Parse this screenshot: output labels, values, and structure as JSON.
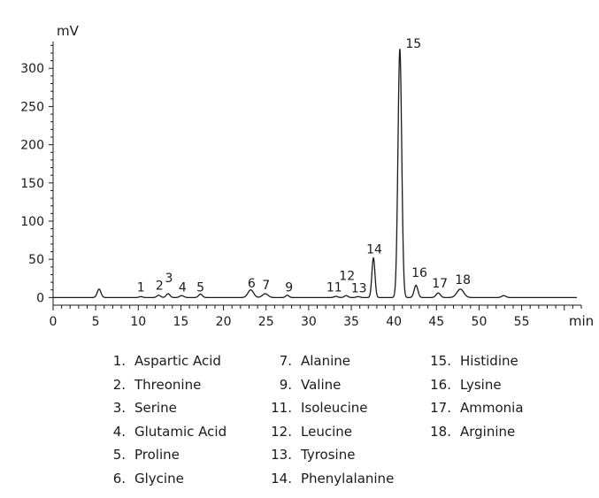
{
  "chart_data": {
    "type": "line",
    "title": "",
    "ylabel": "mV",
    "xlabel": "min",
    "xlim": [
      0,
      62
    ],
    "ylim": [
      -10,
      335
    ],
    "xticks": [
      0,
      5,
      10,
      15,
      20,
      25,
      30,
      35,
      40,
      45,
      50,
      55
    ],
    "yticks": [
      0,
      50,
      100,
      150,
      200,
      250,
      300
    ],
    "grid": false,
    "peaks": [
      {
        "t": 5.4,
        "h": 11,
        "w": 0.22
      },
      {
        "t": 10.3,
        "h": 1.2,
        "w": 0.2
      },
      {
        "t": 12.4,
        "h": 3,
        "w": 0.22
      },
      {
        "t": 13.5,
        "h": 5,
        "w": 0.22
      },
      {
        "t": 15.1,
        "h": 2.5,
        "w": 0.25
      },
      {
        "t": 17.3,
        "h": 4.5,
        "w": 0.22
      },
      {
        "t": 23.2,
        "h": 10,
        "w": 0.33
      },
      {
        "t": 24.9,
        "h": 5,
        "w": 0.33
      },
      {
        "t": 27.5,
        "h": 3,
        "w": 0.2
      },
      {
        "t": 33.2,
        "h": 1.5,
        "w": 0.22
      },
      {
        "t": 34.4,
        "h": 2.5,
        "w": 0.22
      },
      {
        "t": 35.8,
        "h": 1.2,
        "w": 0.22
      },
      {
        "t": 37.6,
        "h": 52,
        "w": 0.18
      },
      {
        "t": 40.7,
        "h": 325,
        "w": 0.22
      },
      {
        "t": 42.6,
        "h": 16,
        "w": 0.22
      },
      {
        "t": 45.2,
        "h": 6,
        "w": 0.25
      },
      {
        "t": 47.8,
        "h": 11,
        "w": 0.4
      },
      {
        "t": 52.9,
        "h": 2.5,
        "w": 0.25
      }
    ],
    "peak_labels": [
      {
        "text": "1",
        "x": 10.3,
        "y": 8
      },
      {
        "text": "2",
        "x": 12.5,
        "y": 10
      },
      {
        "text": "3",
        "x": 13.6,
        "y": 20
      },
      {
        "text": "4",
        "x": 15.2,
        "y": 8
      },
      {
        "text": "5",
        "x": 17.3,
        "y": 8
      },
      {
        "text": "6",
        "x": 23.3,
        "y": 13
      },
      {
        "text": "7",
        "x": 25.0,
        "y": 11
      },
      {
        "text": "9",
        "x": 27.7,
        "y": 8
      },
      {
        "text": "11",
        "x": 33.0,
        "y": 8
      },
      {
        "text": "12",
        "x": 34.5,
        "y": 23
      },
      {
        "text": "13",
        "x": 35.9,
        "y": 7
      },
      {
        "text": "14",
        "x": 37.7,
        "y": 58
      },
      {
        "text": "15",
        "x": 42.3,
        "y": 327
      },
      {
        "text": "16",
        "x": 43.0,
        "y": 27
      },
      {
        "text": "17",
        "x": 45.4,
        "y": 13
      },
      {
        "text": "18",
        "x": 48.1,
        "y": 18
      }
    ]
  },
  "legend": {
    "columns": [
      [
        {
          "num": "1.",
          "name": "Aspartic Acid"
        },
        {
          "num": "2.",
          "name": "Threonine"
        },
        {
          "num": "3.",
          "name": "Serine"
        },
        {
          "num": "4.",
          "name": "Glutamic Acid"
        },
        {
          "num": "5.",
          "name": "Proline"
        },
        {
          "num": "6.",
          "name": "Glycine"
        }
      ],
      [
        {
          "num": "7.",
          "name": "Alanine"
        },
        {
          "num": "9.",
          "name": "Valine"
        },
        {
          "num": "11.",
          "name": "Isoleucine"
        },
        {
          "num": "12.",
          "name": "Leucine"
        },
        {
          "num": "13.",
          "name": "Tyrosine"
        },
        {
          "num": "14.",
          "name": "Phenylalanine"
        }
      ],
      [
        {
          "num": "15.",
          "name": "Histidine"
        },
        {
          "num": "16.",
          "name": "Lysine"
        },
        {
          "num": "17.",
          "name": "Ammonia"
        },
        {
          "num": "18.",
          "name": "Arginine"
        }
      ]
    ]
  }
}
